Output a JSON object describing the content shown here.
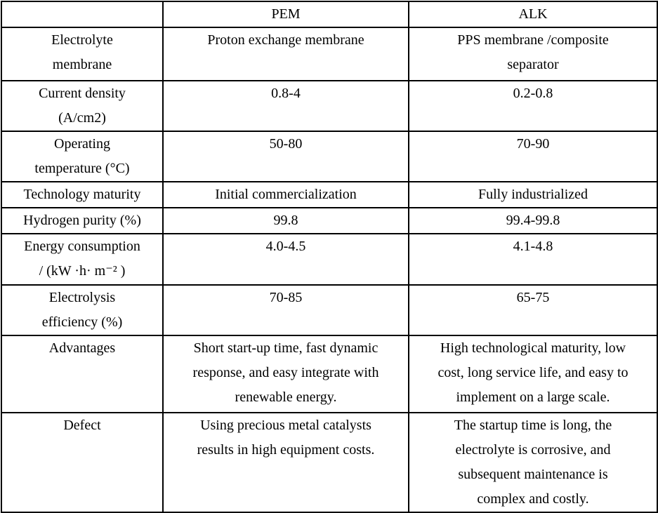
{
  "table": {
    "columns": [
      "",
      "PEM",
      "ALK"
    ],
    "rows": [
      {
        "label": "Electrolyte\nmembrane",
        "pem": "Proton exchange membrane",
        "alk": "PPS membrane /composite\nseparator"
      },
      {
        "label": "Current density\n(A/cm2)",
        "pem": "0.8-4",
        "alk": "0.2-0.8"
      },
      {
        "label": "Operating\ntemperature (°C)",
        "pem": "50-80",
        "alk": "70-90"
      },
      {
        "label": "Technology maturity",
        "pem": "Initial commercialization",
        "alk": "Fully industrialized"
      },
      {
        "label": "Hydrogen purity (%)",
        "pem": "99.8",
        "alk": "99.4-99.8"
      },
      {
        "label": "Energy consumption\n/ (kW ·h· m⁻² )",
        "pem": "4.0-4.5",
        "alk": "4.1-4.8"
      },
      {
        "label": "Electrolysis\nefficiency (%)",
        "pem": "70-85",
        "alk": "65-75"
      },
      {
        "label": "Advantages",
        "pem": "Short start-up time, fast dynamic\nresponse, and easy integrate with\nrenewable energy.",
        "alk": "High technological maturity, low\ncost, long service life, and easy to\nimplement on a large scale."
      },
      {
        "label": "Defect",
        "pem": "Using precious metal catalysts\nresults in high equipment costs.",
        "alk": "The startup time is long, the\nelectrolyte is corrosive, and\nsubsequent maintenance is\ncomplex and costly."
      }
    ]
  }
}
